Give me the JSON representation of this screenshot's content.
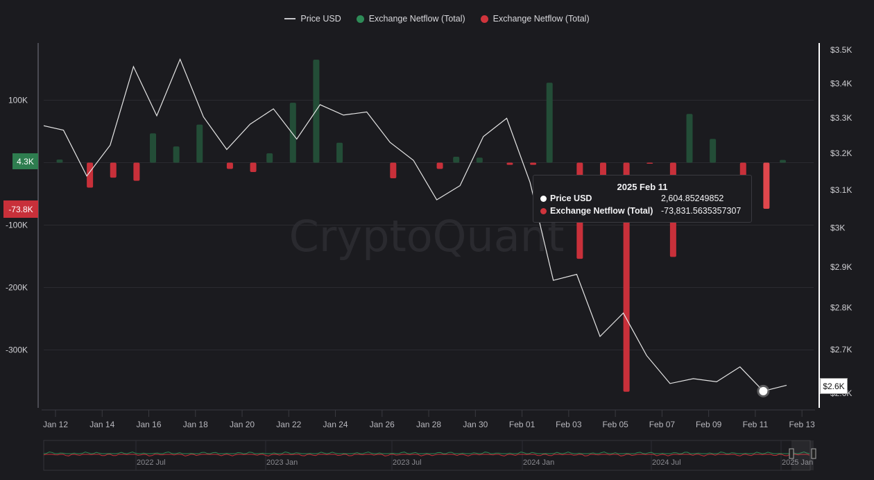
{
  "legend": [
    {
      "label": "Price USD",
      "type": "line",
      "color": "#c8c8cc"
    },
    {
      "label": "Exchange Netflow (Total)",
      "type": "dot",
      "color": "#2e8b57"
    },
    {
      "label": "Exchange Netflow (Total)",
      "type": "dot",
      "color": "#d0343c"
    }
  ],
  "watermark": "CryptoQuant",
  "tooltip": {
    "title": "2025 Feb 11",
    "rows": [
      {
        "name": "Price USD",
        "value": "2,604.85249852",
        "color": "#ffffff"
      },
      {
        "name": "Exchange Netflow (Total)",
        "value": "-73,831.5635357307",
        "color": "#d0343c"
      }
    ]
  },
  "flags": {
    "netflow_last": "4.3K",
    "netflow_hover": "-73.8K",
    "price_hover": "$2.6K"
  },
  "navigator": {
    "labels": [
      "2022 Jul",
      "2023 Jan",
      "2023 Jul",
      "2024 Jan",
      "2024 Jul",
      "2025 Jan"
    ]
  },
  "chart_data": {
    "type": "bar+line",
    "x": [
      "Jan 11",
      "Jan 12",
      "Jan 13",
      "Jan 14",
      "Jan 15",
      "Jan 16",
      "Jan 17",
      "Jan 18",
      "Jan 19",
      "Jan 20",
      "Jan 21",
      "Jan 22",
      "Jan 23",
      "Jan 24",
      "Jan 25",
      "Jan 26",
      "Jan 27",
      "Jan 28",
      "Jan 29",
      "Jan 30",
      "Jan 31",
      "Feb 01",
      "Feb 02",
      "Feb 03",
      "Feb 04",
      "Feb 05",
      "Feb 06",
      "Feb 07",
      "Feb 08",
      "Feb 09",
      "Feb 10",
      "Feb 11",
      "Feb 12"
    ],
    "x_ticks": [
      "Jan 12",
      "Jan 14",
      "Jan 16",
      "Jan 18",
      "Jan 20",
      "Jan 22",
      "Jan 24",
      "Jan 26",
      "Jan 28",
      "Jan 30",
      "Feb 01",
      "Feb 03",
      "Feb 05",
      "Feb 07",
      "Feb 09",
      "Feb 11",
      "Feb 13"
    ],
    "series": [
      {
        "name": "Price USD",
        "axis": "right",
        "type": "line",
        "color": "#e6e6e6",
        "values": [
          3280,
          3265,
          3138,
          3223,
          3450,
          3306,
          3472,
          3303,
          3211,
          3282,
          3326,
          3240,
          3338,
          3308,
          3317,
          3231,
          3181,
          3074,
          3112,
          3247,
          3299,
          3121,
          2867,
          2882,
          2731,
          2787,
          2686,
          2622,
          2633,
          2626,
          2660,
          2604.85,
          2618
        ]
      },
      {
        "name": "Exchange Netflow (Total)",
        "axis": "left",
        "type": "bar",
        "positive_color": "#234d37",
        "negative_color": "#c8303a",
        "values": [
          null,
          5000,
          -40000,
          -24000,
          -29000,
          47000,
          26000,
          61000,
          -10000,
          -15000,
          15000,
          96000,
          165000,
          32000,
          0,
          -25000,
          0,
          -10000,
          9500,
          8000,
          -3500,
          -3500,
          128000,
          -154000,
          -50000,
          -367000,
          -1000,
          -151000,
          78000,
          38000,
          -30000,
          -73831.56,
          4300
        ]
      }
    ],
    "y_left": {
      "ticks": [
        "100K",
        "-100K",
        "-200K",
        "-300K"
      ],
      "tick_values": [
        100000,
        -100000,
        -200000,
        -300000
      ],
      "range": [
        -395000,
        190000
      ]
    },
    "y_right": {
      "scale": "log",
      "ticks": [
        "$3.5K",
        "$3.4K",
        "$3.3K",
        "$3.2K",
        "$3.1K",
        "$3K",
        "$2.9K",
        "$2.8K",
        "$2.7K",
        "$2.6K"
      ],
      "tick_values": [
        3500,
        3400,
        3300,
        3200,
        3100,
        3000,
        2900,
        2800,
        2700,
        2600
      ]
    },
    "hover_index": 31,
    "grid": true,
    "legend_position": "top"
  }
}
